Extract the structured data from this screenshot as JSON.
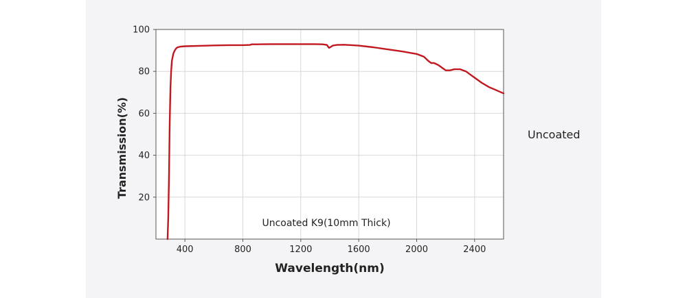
{
  "chart_data": {
    "type": "line",
    "xlabel": "Wavelength(nm)",
    "ylabel": "Transmission(%)",
    "annotation": "Uncoated K9(10mm Thick)",
    "xlim": [
      200,
      2600
    ],
    "ylim": [
      0,
      100
    ],
    "x_ticks": [
      400,
      800,
      1200,
      1600,
      2000,
      2400
    ],
    "y_ticks": [
      20,
      40,
      60,
      80,
      100
    ],
    "grid": true,
    "line_color": "#c0181e",
    "series": [
      {
        "x": [
          280,
          285,
          290,
          295,
          300,
          305,
          310,
          320,
          330,
          340,
          350,
          370,
          400,
          500,
          600,
          700,
          800,
          850,
          860,
          900,
          1000,
          1100,
          1200,
          1300,
          1350,
          1380,
          1395,
          1405,
          1420,
          1450,
          1500,
          1600,
          1700,
          1800,
          1900,
          2000,
          2050,
          2080,
          2100,
          2120,
          2150,
          2180,
          2200,
          2230,
          2260,
          2300,
          2340,
          2370,
          2400,
          2450,
          2500,
          2550,
          2600
        ],
        "y": [
          0,
          10,
          30,
          55,
          72,
          80,
          85,
          88.5,
          90,
          91,
          91.5,
          91.8,
          92,
          92.2,
          92.4,
          92.5,
          92.5,
          92.6,
          92.9,
          92.9,
          93,
          93,
          93,
          93,
          92.9,
          92.6,
          91.2,
          91.6,
          92.3,
          92.6,
          92.7,
          92.3,
          91.5,
          90.5,
          89.5,
          88.3,
          87,
          85,
          84,
          84,
          83,
          81.5,
          80.5,
          80.5,
          81,
          81,
          80,
          78.5,
          77,
          74.5,
          72.5,
          71,
          69.5
        ]
      }
    ]
  },
  "side_label": "Uncoated"
}
